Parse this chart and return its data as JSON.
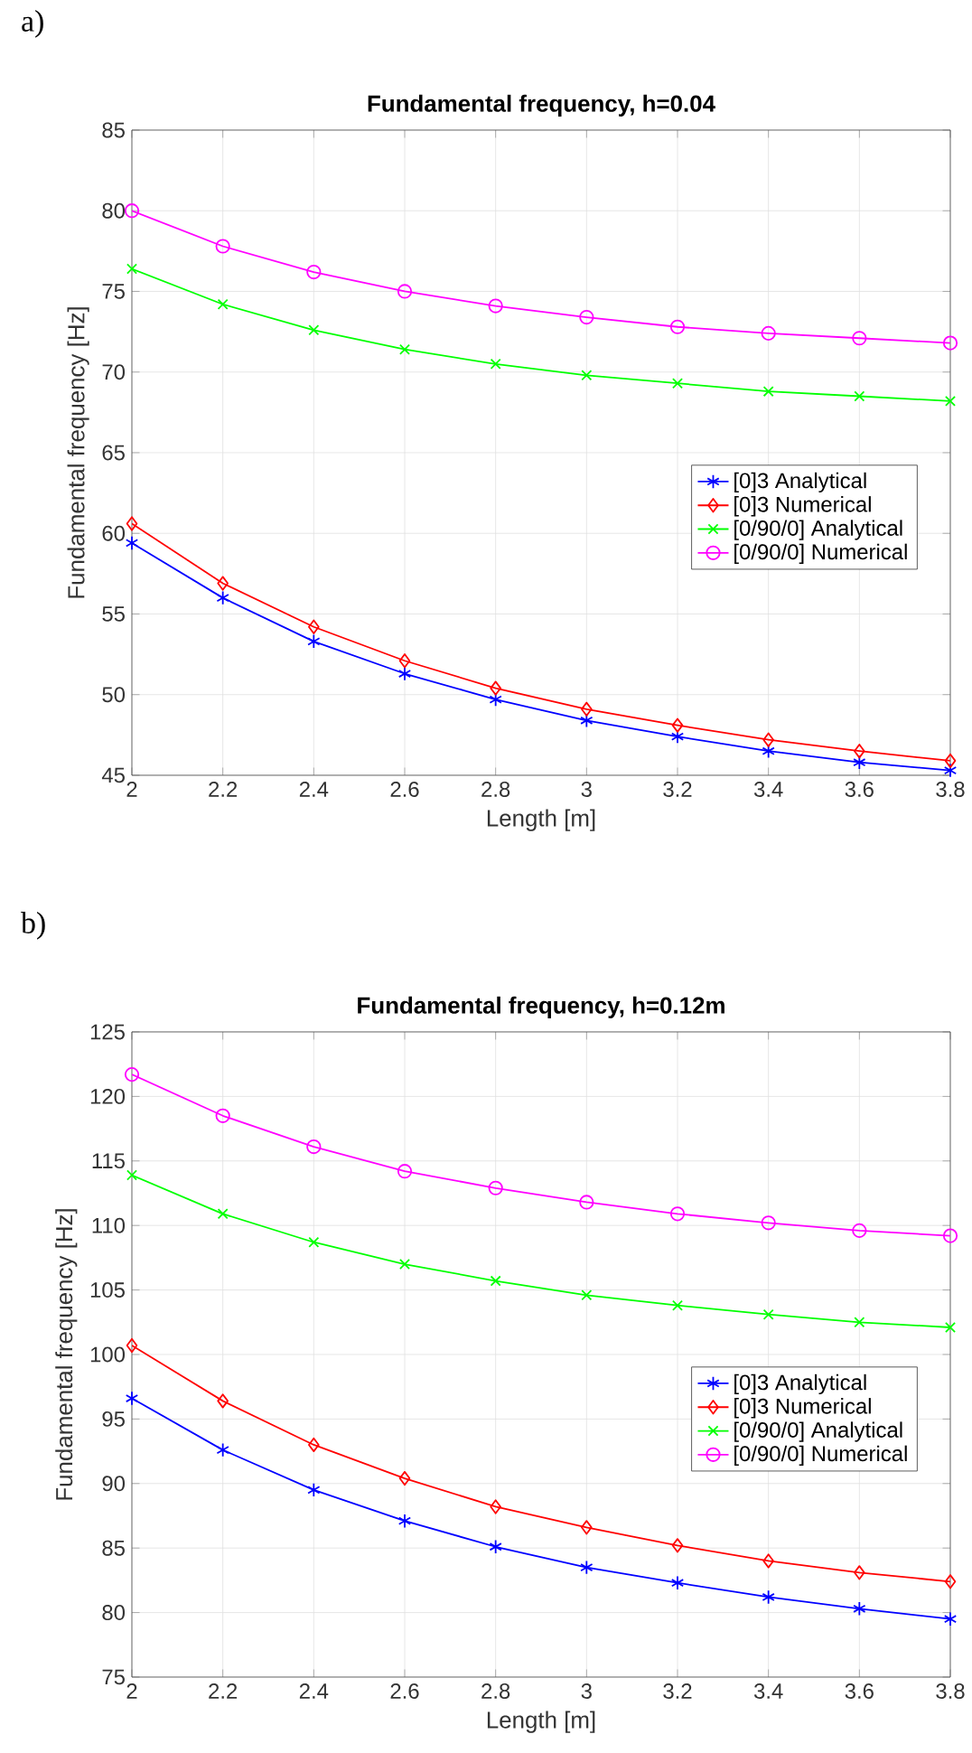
{
  "chart_data": [
    {
      "type": "line",
      "title": "Fundamental frequency, h=0.04",
      "xlabel": "Length [m]",
      "ylabel": "Fundamental frequency [Hz]",
      "annotations": [
        "a)"
      ],
      "x": [
        2,
        2.2,
        2.4,
        2.6,
        2.8,
        3,
        3.2,
        3.4,
        3.6,
        3.8
      ],
      "series": [
        {
          "name": "[0]3 Analytical",
          "color": "#0000ff",
          "marker": "cross",
          "values": [
            59.4,
            56.0,
            53.3,
            51.3,
            49.7,
            48.4,
            47.4,
            46.5,
            45.8,
            45.3
          ]
        },
        {
          "name": "[0]3 Numerical",
          "color": "#ff0000",
          "marker": "diamond",
          "values": [
            60.6,
            56.9,
            54.2,
            52.1,
            50.4,
            49.1,
            48.1,
            47.2,
            46.5,
            45.9
          ]
        },
        {
          "name": "[0/90/0] Analytical",
          "color": "#00ff00",
          "marker": "cross",
          "values": [
            76.4,
            74.2,
            72.6,
            71.4,
            70.5,
            69.8,
            69.3,
            68.8,
            68.5,
            68.2
          ]
        },
        {
          "name": "[0/90/0] Numerical",
          "color": "#ff00ff",
          "marker": "circle",
          "values": [
            80.0,
            77.8,
            76.2,
            75.0,
            74.1,
            73.4,
            72.8,
            72.4,
            72.1,
            71.8
          ]
        }
      ],
      "xlim": [
        2,
        3.8
      ],
      "ylim": [
        45,
        85
      ],
      "xticks": [
        2,
        2.2,
        2.4,
        2.6,
        2.8,
        3,
        3.2,
        3.4,
        3.6,
        3.8
      ],
      "yticks": [
        45,
        50,
        55,
        60,
        65,
        70,
        75,
        80,
        85
      ],
      "grid": true,
      "legend": "right"
    },
    {
      "type": "line",
      "title": "Fundamental frequency, h=0.12m",
      "xlabel": "Length [m]",
      "ylabel": "Fundamental frequency [Hz]",
      "annotations": [
        "b)"
      ],
      "x": [
        2,
        2.2,
        2.4,
        2.6,
        2.8,
        3,
        3.2,
        3.4,
        3.6,
        3.8
      ],
      "series": [
        {
          "name": "[0]3 Analytical",
          "color": "#0000ff",
          "marker": "cross",
          "values": [
            96.6,
            92.6,
            89.5,
            87.1,
            85.1,
            83.5,
            82.3,
            81.2,
            80.3,
            79.5
          ]
        },
        {
          "name": "[0]3 Numerical",
          "color": "#ff0000",
          "marker": "diamond",
          "values": [
            100.7,
            96.4,
            93.0,
            90.4,
            88.2,
            86.6,
            85.2,
            84.0,
            83.1,
            82.4
          ]
        },
        {
          "name": "[0/90/0] Analytical",
          "color": "#00ff00",
          "marker": "cross",
          "values": [
            113.9,
            110.9,
            108.7,
            107.0,
            105.7,
            104.6,
            103.8,
            103.1,
            102.5,
            102.1
          ]
        },
        {
          "name": "[0/90/0] Numerical",
          "color": "#ff00ff",
          "marker": "circle",
          "values": [
            121.7,
            118.5,
            116.1,
            114.2,
            112.9,
            111.8,
            110.9,
            110.2,
            109.6,
            109.2
          ]
        }
      ],
      "xlim": [
        2,
        3.8
      ],
      "ylim": [
        75,
        125
      ],
      "xticks": [
        2,
        2.2,
        2.4,
        2.6,
        2.8,
        3,
        3.2,
        3.4,
        3.6,
        3.8
      ],
      "yticks": [
        75,
        80,
        85,
        90,
        95,
        100,
        105,
        110,
        115,
        120,
        125
      ],
      "grid": true,
      "legend": "right"
    }
  ]
}
